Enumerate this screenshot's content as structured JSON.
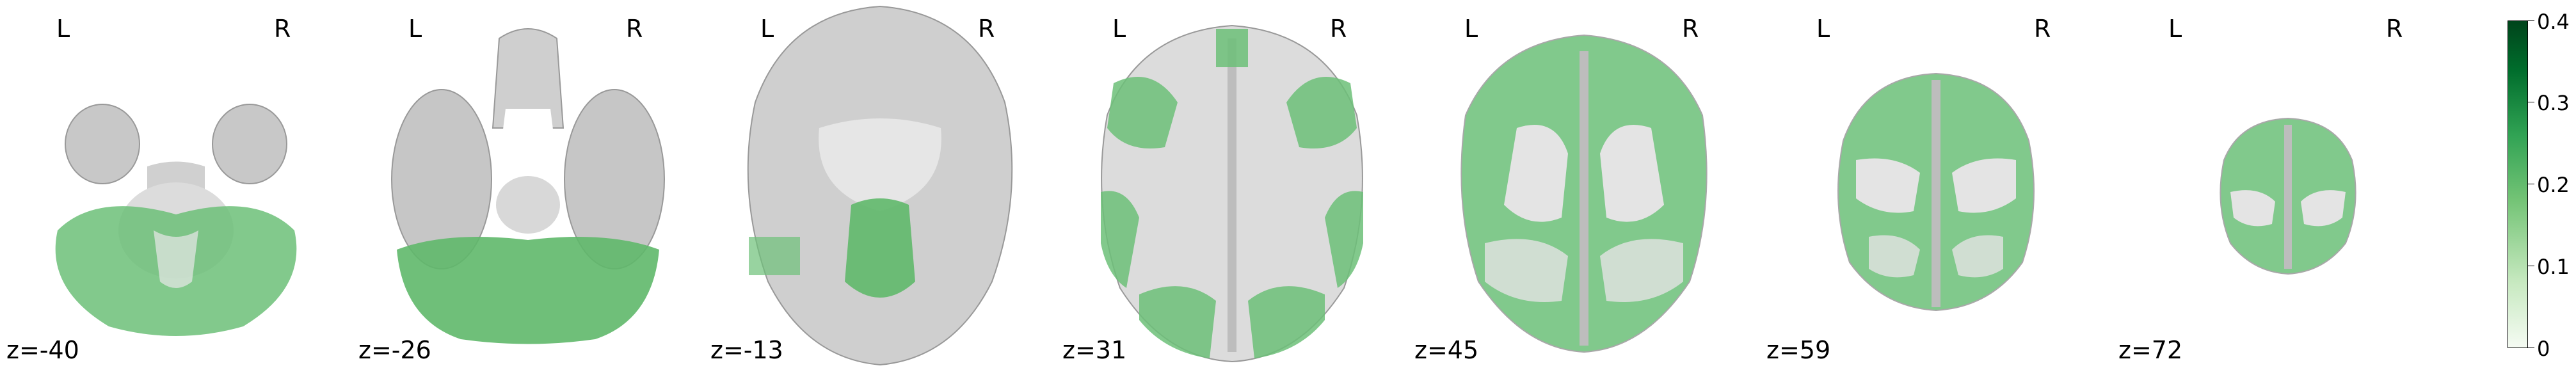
{
  "figure": {
    "panels": [
      {
        "left_label": "L",
        "right_label": "R",
        "slice_label": "z=-40"
      },
      {
        "left_label": "L",
        "right_label": "R",
        "slice_label": "z=-26"
      },
      {
        "left_label": "L",
        "right_label": "R",
        "slice_label": "z=-13"
      },
      {
        "left_label": "L",
        "right_label": "R",
        "slice_label": "z=31"
      },
      {
        "left_label": "L",
        "right_label": "R",
        "slice_label": "z=45"
      },
      {
        "left_label": "L",
        "right_label": "R",
        "slice_label": "z=59"
      },
      {
        "left_label": "L",
        "right_label": "R",
        "slice_label": "z=72"
      }
    ],
    "colorbar": {
      "ticks": [
        "0",
        "0.1",
        "0.2",
        "0.3",
        "0.4"
      ],
      "min": 0,
      "max": 0.4,
      "colors": {
        "low": "#f5fbf3",
        "mid": "#74c476",
        "high": "#00441b"
      }
    },
    "overlay_color": "#5fb86a",
    "anatomy_color": "#c9c9c9"
  }
}
